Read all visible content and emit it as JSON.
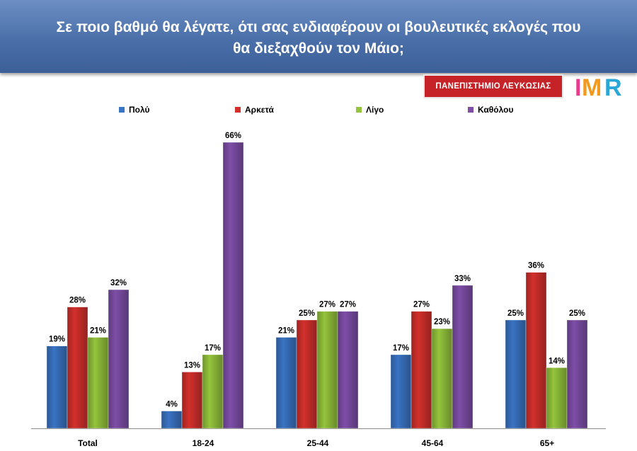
{
  "header": {
    "title_line1": "Σε ποιο βαθμό θα λέγατε, ότι σας ενδιαφέρουν οι βουλευτικές εκλογές που",
    "title_line2": "θα διεξαχθούν τον Μάιο;"
  },
  "logos": {
    "university": "ΠΑΝΕΠΙΣΤΗΜΙΟ ΛΕΥΚΩΣΙΑΣ",
    "imr": "IMR"
  },
  "colors": {
    "header": "#4a6fa8",
    "series": [
      "#3a74c4",
      "#d3302c",
      "#94c43c",
      "#7e4ea8"
    ]
  },
  "chart_data": {
    "type": "bar",
    "title": "Σε ποιο βαθμό θα λέγατε, ότι σας ενδιαφέρουν οι βουλευτικές εκλογές που θα διεξαχθούν τον Μάιο;",
    "categories": [
      "Total",
      "18-24",
      "25-44",
      "45-64",
      "65+"
    ],
    "series": [
      {
        "name": "Πολύ",
        "values": [
          19,
          4,
          21,
          17,
          25
        ]
      },
      {
        "name": "Αρκετά",
        "values": [
          28,
          13,
          25,
          27,
          36
        ]
      },
      {
        "name": "Λίγο",
        "values": [
          21,
          17,
          27,
          23,
          14
        ]
      },
      {
        "name": "Καθόλου",
        "values": [
          32,
          66,
          27,
          33,
          25
        ]
      }
    ],
    "value_suffix": "%",
    "ylim": [
      0,
      66
    ],
    "legend_position": "top",
    "grid": false
  }
}
